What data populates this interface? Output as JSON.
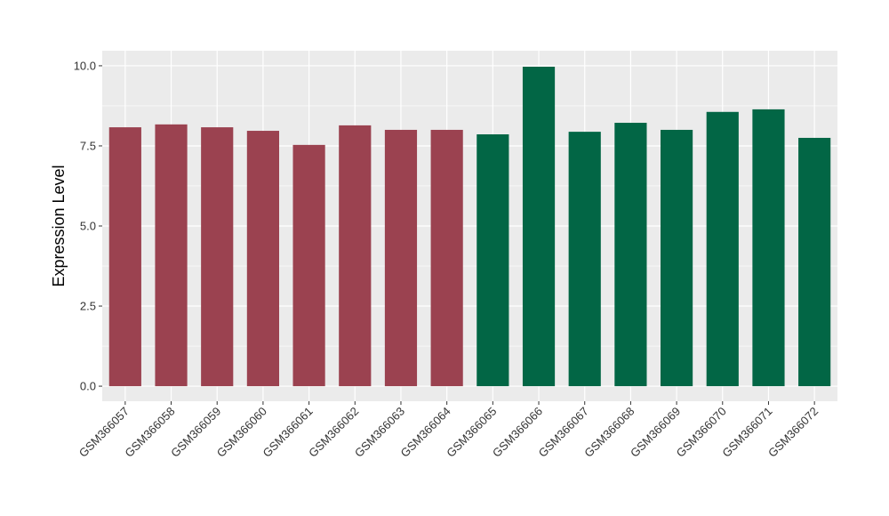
{
  "chart_data": {
    "type": "bar",
    "title": "",
    "xlabel": "",
    "ylabel": "Expression Level",
    "ylim": [
      -0.47,
      10.47
    ],
    "yticks": [
      0,
      2.5,
      5,
      7.5,
      10
    ],
    "ytick_labels": [
      "0.0",
      "2.5",
      "5.0",
      "7.5",
      "10.0"
    ],
    "grid": true,
    "categories": [
      "GSM366057",
      "GSM366058",
      "GSM366059",
      "GSM366060",
      "GSM366061",
      "GSM366062",
      "GSM366063",
      "GSM366064",
      "GSM366065",
      "GSM366066",
      "GSM366067",
      "GSM366068",
      "GSM366069",
      "GSM366070",
      "GSM366071",
      "GSM366072"
    ],
    "values": [
      8.08,
      8.17,
      8.08,
      7.97,
      7.53,
      8.14,
      8.0,
      8.0,
      7.86,
      9.97,
      7.94,
      8.22,
      8.0,
      8.56,
      8.64,
      7.75
    ],
    "groups": [
      0,
      0,
      0,
      0,
      0,
      0,
      0,
      0,
      1,
      1,
      1,
      1,
      1,
      1,
      1,
      1
    ],
    "group_colors": [
      "#9b4250",
      "#026645"
    ],
    "panel_color": "#ebebeb",
    "grid_color": "#ffffff"
  }
}
